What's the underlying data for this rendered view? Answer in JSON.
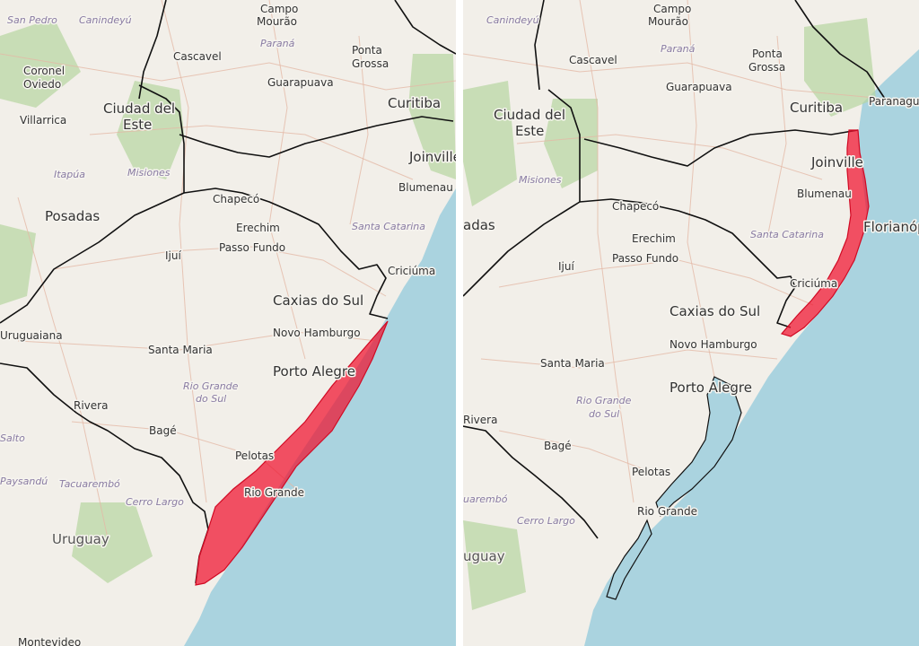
{
  "maps": [
    {
      "id": "left",
      "labels": {
        "san_pedro": "San Pedro",
        "canindeyu": "Canindeyú",
        "campo_mourao_1": "Campo",
        "campo_mourao_2": "Mourão",
        "parana": "Paraná",
        "ponta_grossa_1": "Ponta",
        "ponta_grossa_2": "Grossa",
        "cascavel": "Cascavel",
        "coronel_oviedo_1": "Coronel",
        "coronel_oviedo_2": "Oviedo",
        "guarapuava": "Guarapuava",
        "curitiba": "Curitiba",
        "ciudad_del_este_1": "Ciudad del",
        "ciudad_del_este_2": "Este",
        "villarrica": "Villarrica",
        "itapua": "Itapúa",
        "misiones": "Misiones",
        "joinville": "Joinville",
        "blumenau": "Blumenau",
        "posadas": "Posadas",
        "chapeco": "Chapecó",
        "erechim": "Erechim",
        "santa_catarina": "Santa Catarina",
        "passo_fundo": "Passo Fundo",
        "ijui": "Ijuí",
        "criciuma": "Criciúma",
        "caxias_do_sul": "Caxias do Sul",
        "uruguaiana": "Uruguaiana",
        "novo_hamburgo": "Novo Hamburgo",
        "santa_maria": "Santa Maria",
        "porto_alegre": "Porto Alegre",
        "rio_grande_do_sul_1": "Rio Grande",
        "rio_grande_do_sul_2": "do Sul",
        "rivera": "Rivera",
        "bage": "Bagé",
        "salto": "Salto",
        "pelotas": "Pelotas",
        "rio_grande": "Rio Grande",
        "paysandu": "Paysandú",
        "tacuarembo": "Tacuarembó",
        "cerro_largo": "Cerro Largo",
        "uruguay": "Uruguay",
        "montevideo": "Montevideo"
      },
      "alert_area": "southern Rio Grande do Sul coast"
    },
    {
      "id": "right",
      "labels": {
        "canindeyu": "Canindeyú",
        "campo_mourao_1": "Campo",
        "campo_mourao_2": "Mourão",
        "parana": "Paraná",
        "ponta_grossa_1": "Ponta",
        "ponta_grossa_2": "Grossa",
        "cascavel": "Cascavel",
        "guarapuava": "Guarapuava",
        "curitiba": "Curitiba",
        "paranagua": "Paranaguá",
        "ciudad_del_este_1": "Ciudad del",
        "ciudad_del_este_2": "Este",
        "misiones": "Misiones",
        "joinville": "Joinville",
        "blumenau": "Blumenau",
        "florianopolis": "Florianóp",
        "posadas": "adas",
        "chapeco": "Chapecó",
        "erechim": "Erechim",
        "santa_catarina": "Santa Catarina",
        "passo_fundo": "Passo Fundo",
        "ijui": "Ijuí",
        "criciuma": "Criciúma",
        "caxias_do_sul": "Caxias do Sul",
        "novo_hamburgo": "Novo Hamburgo",
        "santa_maria": "Santa Maria",
        "porto_alegre": "Porto Alegre",
        "rio_grande_do_sul_1": "Rio Grande",
        "rio_grande_do_sul_2": "do Sul",
        "rivera": "Rivera",
        "bage": "Bagé",
        "pelotas": "Pelotas",
        "rio_grande": "Rio Grande",
        "tacuarembo": "uarembó",
        "cerro_largo": "Cerro Largo",
        "uruguay": "uguay"
      },
      "alert_area": "Santa Catarina coast"
    }
  ],
  "colors": {
    "land": "#f2efe9",
    "sea": "#aad3df",
    "forest": "#b7d6a0",
    "alert": "#f0112e",
    "border": "#111111"
  }
}
